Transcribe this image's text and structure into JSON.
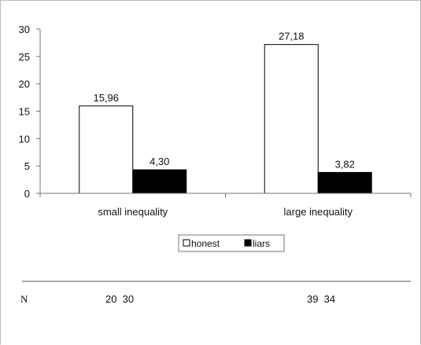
{
  "chart_data": {
    "type": "bar",
    "categories": [
      "small inequality",
      "large inequality"
    ],
    "series": [
      {
        "name": "honest",
        "values": [
          15.96,
          27.18
        ],
        "labels": [
          "15,96",
          "27,18"
        ],
        "color": "#ffffff"
      },
      {
        "name": "liars",
        "values": [
          4.3,
          3.82
        ],
        "labels": [
          "4,30",
          "3,82"
        ],
        "color": "#000000"
      }
    ],
    "ylim": [
      0,
      30
    ],
    "yticks": [
      "0",
      "5",
      "10",
      "15",
      "20",
      "25",
      "30"
    ],
    "ytick_values": [
      0,
      5,
      10,
      15,
      20,
      25,
      30
    ],
    "legend_position": "bottom-center",
    "grid": false
  },
  "n_row": {
    "label": "N",
    "values": [
      "20  30",
      "39  34"
    ]
  }
}
